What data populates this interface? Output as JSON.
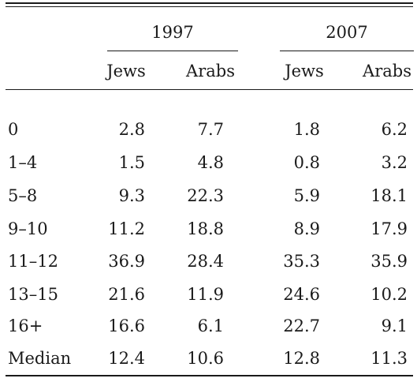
{
  "table": {
    "groups": [
      {
        "year": "1997",
        "sub": [
          "Jews",
          "Arabs"
        ]
      },
      {
        "year": "2007",
        "sub": [
          "Jews",
          "Arabs"
        ]
      }
    ],
    "rows": [
      {
        "label": "0",
        "values": [
          "2.8",
          "7.7",
          "1.8",
          "6.2"
        ]
      },
      {
        "label": "1–4",
        "values": [
          "1.5",
          "4.8",
          "0.8",
          "3.2"
        ]
      },
      {
        "label": "5–8",
        "values": [
          "9.3",
          "22.3",
          "5.9",
          "18.1"
        ]
      },
      {
        "label": "9–10",
        "values": [
          "11.2",
          "18.8",
          "8.9",
          "17.9"
        ]
      },
      {
        "label": "11–12",
        "values": [
          "36.9",
          "28.4",
          "35.3",
          "35.9"
        ]
      },
      {
        "label": "13–15",
        "values": [
          "21.6",
          "11.9",
          "24.6",
          "10.2"
        ]
      },
      {
        "label": "16+",
        "values": [
          "16.6",
          "6.1",
          "22.7",
          "9.1"
        ]
      },
      {
        "label": "Median",
        "values": [
          "12.4",
          "10.6",
          "12.8",
          "11.3"
        ]
      }
    ]
  }
}
